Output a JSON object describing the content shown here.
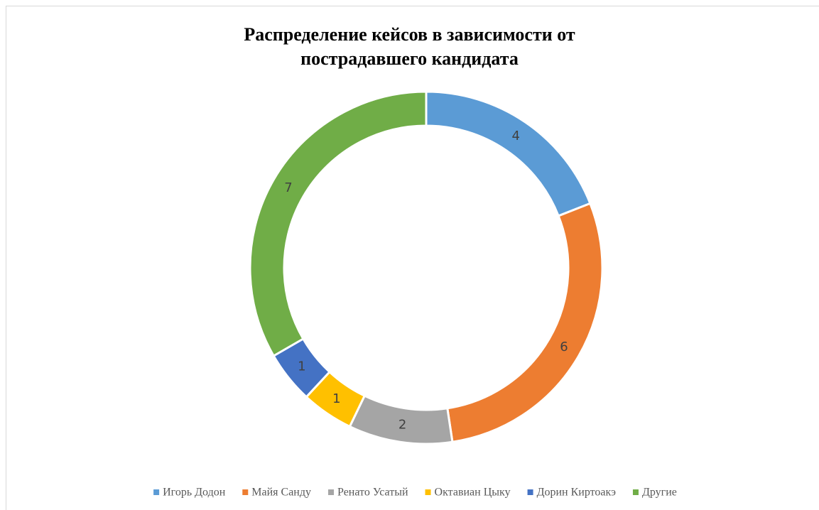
{
  "chart_data": {
    "type": "donut",
    "title": "Распределение кейсов в зависимости от пострадавшего кандидата",
    "categories": [
      "Игорь Додон",
      "Майя Санду",
      "Ренато Усатый",
      "Октавиан Цыку",
      "Дорин Киртоакэ",
      "Другие"
    ],
    "values": [
      4,
      6,
      2,
      1,
      1,
      7
    ],
    "colors": [
      "#5b9bd5",
      "#ed7d31",
      "#a5a5a5",
      "#ffc000",
      "#4472c4",
      "#70ad47"
    ],
    "legend": "bottom"
  }
}
